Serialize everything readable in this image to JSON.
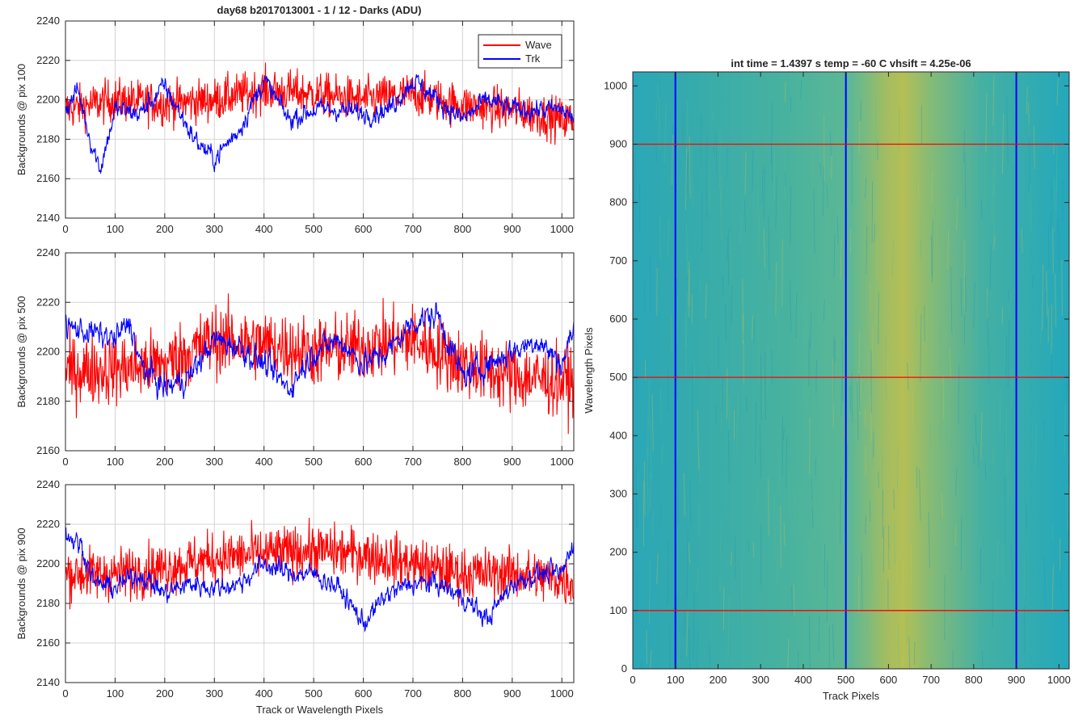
{
  "figure_title": "day68 b2017013001 - 1 / 12 - Darks (ADU)",
  "chart_data": [
    {
      "type": "line",
      "title": "day68 b2017013001 - 1 / 12 - Darks (ADU)",
      "xlabel": "",
      "ylabel": "Backgrounds @ pix 100",
      "xlim": [
        0,
        1024
      ],
      "ylim": [
        2140,
        2240
      ],
      "xticks": [
        0,
        100,
        200,
        300,
        400,
        500,
        600,
        700,
        800,
        900,
        1000
      ],
      "yticks": [
        2140,
        2160,
        2180,
        2200,
        2220,
        2240
      ],
      "grid": true,
      "legend": "top-right",
      "series": [
        {
          "name": "Wave",
          "color": "#ff0000",
          "mean": 2198,
          "amp": 10,
          "anchors": [
            [
              0,
              2195
            ],
            [
              100,
              2200
            ],
            [
              200,
              2198
            ],
            [
              300,
              2200
            ],
            [
              400,
              2205
            ],
            [
              500,
              2203
            ],
            [
              600,
              2200
            ],
            [
              700,
              2203
            ],
            [
              800,
              2197
            ],
            [
              900,
              2195
            ],
            [
              1000,
              2190
            ],
            [
              1024,
              2190
            ]
          ]
        },
        {
          "name": "Trk",
          "color": "#0000ff",
          "mean": 2195,
          "amp": 5,
          "anchors": [
            [
              0,
              2195
            ],
            [
              25,
              2205
            ],
            [
              50,
              2180
            ],
            [
              70,
              2165
            ],
            [
              100,
              2195
            ],
            [
              150,
              2193
            ],
            [
              200,
              2207
            ],
            [
              260,
              2180
            ],
            [
              300,
              2170
            ],
            [
              350,
              2185
            ],
            [
              400,
              2210
            ],
            [
              450,
              2190
            ],
            [
              500,
              2195
            ],
            [
              550,
              2195
            ],
            [
              600,
              2193
            ],
            [
              650,
              2195
            ],
            [
              700,
              2210
            ],
            [
              750,
              2200
            ],
            [
              800,
              2190
            ],
            [
              850,
              2200
            ],
            [
              900,
              2195
            ],
            [
              950,
              2195
            ],
            [
              1000,
              2195
            ],
            [
              1024,
              2190
            ]
          ]
        }
      ]
    },
    {
      "type": "line",
      "title": "",
      "xlabel": "",
      "ylabel": "Backgrounds @ pix 500",
      "xlim": [
        0,
        1024
      ],
      "ylim": [
        2160,
        2240
      ],
      "xticks": [
        0,
        100,
        200,
        300,
        400,
        500,
        600,
        700,
        800,
        900,
        1000
      ],
      "yticks": [
        2160,
        2180,
        2200,
        2220,
        2240
      ],
      "grid": true,
      "series": [
        {
          "name": "Wave",
          "color": "#ff0000",
          "mean": 2196,
          "amp": 13,
          "anchors": [
            [
              0,
              2192
            ],
            [
              100,
              2193
            ],
            [
              200,
              2195
            ],
            [
              300,
              2205
            ],
            [
              400,
              2203
            ],
            [
              500,
              2200
            ],
            [
              600,
              2202
            ],
            [
              700,
              2205
            ],
            [
              800,
              2195
            ],
            [
              900,
              2190
            ],
            [
              1000,
              2188
            ],
            [
              1024,
              2188
            ]
          ]
        },
        {
          "name": "Trk",
          "color": "#0000ff",
          "mean": 2200,
          "amp": 5,
          "anchors": [
            [
              0,
              2210
            ],
            [
              50,
              2208
            ],
            [
              100,
              2205
            ],
            [
              130,
              2212
            ],
            [
              150,
              2195
            ],
            [
              200,
              2185
            ],
            [
              250,
              2190
            ],
            [
              300,
              2205
            ],
            [
              350,
              2202
            ],
            [
              400,
              2195
            ],
            [
              450,
              2185
            ],
            [
              500,
              2200
            ],
            [
              550,
              2205
            ],
            [
              600,
              2195
            ],
            [
              650,
              2200
            ],
            [
              700,
              2212
            ],
            [
              750,
              2215
            ],
            [
              800,
              2190
            ],
            [
              850,
              2195
            ],
            [
              900,
              2200
            ],
            [
              950,
              2205
            ],
            [
              1000,
              2195
            ],
            [
              1024,
              2210
            ]
          ]
        }
      ]
    },
    {
      "type": "line",
      "title": "",
      "xlabel": "Track or Wavelength Pixels",
      "ylabel": "Backgrounds @ pix 900",
      "xlim": [
        0,
        1024
      ],
      "ylim": [
        2140,
        2240
      ],
      "xticks": [
        0,
        100,
        200,
        300,
        400,
        500,
        600,
        700,
        800,
        900,
        1000
      ],
      "yticks": [
        2140,
        2160,
        2180,
        2200,
        2220,
        2240
      ],
      "grid": true,
      "series": [
        {
          "name": "Wave",
          "color": "#ff0000",
          "mean": 2200,
          "amp": 12,
          "anchors": [
            [
              0,
              2195
            ],
            [
              100,
              2195
            ],
            [
              200,
              2198
            ],
            [
              300,
              2203
            ],
            [
              400,
              2205
            ],
            [
              500,
              2207
            ],
            [
              600,
              2205
            ],
            [
              700,
              2200
            ],
            [
              800,
              2195
            ],
            [
              900,
              2195
            ],
            [
              1000,
              2192
            ],
            [
              1024,
              2190
            ]
          ]
        },
        {
          "name": "Trk",
          "color": "#0000ff",
          "mean": 2193,
          "amp": 5,
          "anchors": [
            [
              0,
              2215
            ],
            [
              30,
              2210
            ],
            [
              60,
              2190
            ],
            [
              100,
              2188
            ],
            [
              150,
              2195
            ],
            [
              200,
              2185
            ],
            [
              250,
              2190
            ],
            [
              300,
              2188
            ],
            [
              350,
              2190
            ],
            [
              400,
              2200
            ],
            [
              450,
              2195
            ],
            [
              500,
              2195
            ],
            [
              550,
              2188
            ],
            [
              600,
              2170
            ],
            [
              650,
              2185
            ],
            [
              700,
              2190
            ],
            [
              750,
              2190
            ],
            [
              800,
              2183
            ],
            [
              850,
              2172
            ],
            [
              900,
              2190
            ],
            [
              950,
              2195
            ],
            [
              1000,
              2195
            ],
            [
              1024,
              2212
            ]
          ]
        }
      ]
    },
    {
      "type": "heatmap",
      "title": "int time = 1.4397 s   temp = -60 C   vhsift = 4.25e-06",
      "xlabel": "Track Pixels",
      "ylabel": "Wavelength Pixels",
      "xlim": [
        0,
        1024
      ],
      "ylim": [
        0,
        1024
      ],
      "xticks": [
        0,
        100,
        200,
        300,
        400,
        500,
        600,
        700,
        800,
        900,
        1000
      ],
      "yticks": [
        0,
        100,
        200,
        300,
        400,
        500,
        600,
        700,
        800,
        900,
        1000
      ],
      "colormap": "parula",
      "colors": {
        "low": "#1fa8b8",
        "mid": "#48b49a",
        "high": "#c8c040"
      },
      "bright_band_x": [
        550,
        650
      ],
      "markers": {
        "vertical": {
          "color": "#0000ff",
          "values": [
            100,
            500,
            900
          ]
        },
        "horizontal": {
          "color": "#ff0000",
          "values": [
            100,
            500,
            900
          ]
        }
      }
    }
  ]
}
